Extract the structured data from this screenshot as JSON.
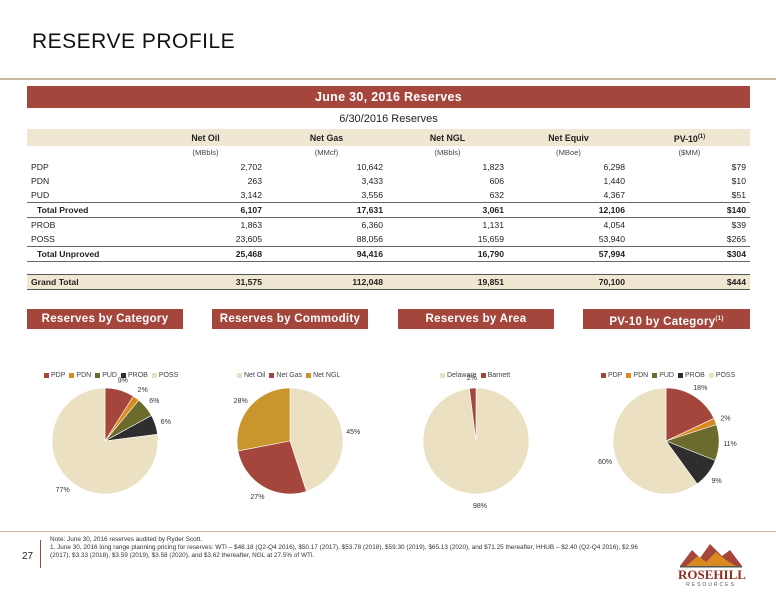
{
  "title": "RESERVE PROFILE",
  "banner": "June 30, 2016 Reserves",
  "table": {
    "title": "6/30/2016 Reserves",
    "headers": [
      "Net Oil",
      "Net Gas",
      "Net NGL",
      "Net Equiv",
      "PV-10"
    ],
    "pv_sup": "(1)",
    "units": [
      "(MBbls)",
      "(MMcf)",
      "(MBbls)",
      "(MBoe)",
      "($MM)"
    ],
    "rows": [
      {
        "label": "PDP",
        "values": [
          "2,702",
          "10,642",
          "1,823",
          "6,298",
          "$79"
        ]
      },
      {
        "label": "PDN",
        "values": [
          "263",
          "3,433",
          "606",
          "1,440",
          "$10"
        ]
      },
      {
        "label": "PUD",
        "values": [
          "3,142",
          "3,556",
          "632",
          "4,367",
          "$51"
        ]
      },
      {
        "label": "Total Proved",
        "values": [
          "6,107",
          "17,631",
          "3,061",
          "12,106",
          "$140"
        ]
      },
      {
        "label": "PROB",
        "values": [
          "1,863",
          "6,360",
          "1,131",
          "4,054",
          "$39"
        ]
      },
      {
        "label": "POSS",
        "values": [
          "23,605",
          "88,056",
          "15,659",
          "53,940",
          "$265"
        ]
      },
      {
        "label": "Total Unproved",
        "values": [
          "25,468",
          "94,416",
          "16,790",
          "57,994",
          "$304"
        ]
      },
      {
        "label": "Grand Total",
        "values": [
          "31,575",
          "112,048",
          "19,851",
          "70,100",
          "$444"
        ]
      }
    ]
  },
  "sections": [
    "Reserves by Category",
    "Reserves by Commodity",
    "Reserves by Area",
    "PV-10 by Category"
  ],
  "pv_section_sup": "(1)",
  "chart_data": [
    {
      "type": "pie",
      "legend": [
        "PDP",
        "PDN",
        "PUD",
        "PROB",
        "POSS"
      ],
      "values": [
        9,
        2,
        6,
        6,
        77
      ],
      "labels": [
        "9%",
        "2%",
        "6%",
        "6%",
        "77%"
      ],
      "colors": [
        "#a5463d",
        "#d9891f",
        "#6b6b2d",
        "#2e2e2e",
        "#ebe0c2"
      ]
    },
    {
      "type": "pie",
      "legend": [
        "Net Oil",
        "Net Gas",
        "Net NGL"
      ],
      "values": [
        45,
        27,
        28
      ],
      "labels": [
        "45%",
        "27%",
        "28%"
      ],
      "colors": [
        "#ebe0c2",
        "#a5463d",
        "#c9962e"
      ]
    },
    {
      "type": "pie",
      "legend": [
        "Delaware",
        "Barnett"
      ],
      "values": [
        98,
        2
      ],
      "labels": [
        "98%",
        "2%"
      ],
      "colors": [
        "#ebe0c2",
        "#a5463d"
      ]
    },
    {
      "type": "pie",
      "legend": [
        "PDP",
        "PDN",
        "PUD",
        "PROB",
        "POSS"
      ],
      "values": [
        18,
        2,
        11,
        9,
        60
      ],
      "labels": [
        "18%",
        "2%",
        "11%",
        "9%",
        "60%"
      ],
      "colors": [
        "#a5463d",
        "#d9891f",
        "#6b6b2d",
        "#2e2e2e",
        "#ebe0c2"
      ]
    }
  ],
  "page_number": "27",
  "notes": [
    "Note: June 30, 2016 reserves audited by Ryder Scott.",
    "1.    June 30, 2016 long range planning pricing for reserves: WTI – $48.18 (Q2-Q4 2016), $50.17 (2017), $53.78 (2018), $59.30 (2019), $65.13 (2020), and $71.25 thereafter, HHUB – $2.40 (Q2-Q4 2016), $2.96 (2017), $3.33 (2018), $3.59 (2019), $3.58 (2020), and $3.62 thereafter, NGL at 27.5% of WTI."
  ],
  "logo": {
    "name": "ROSEHILL",
    "sub": "RESOURCES"
  }
}
